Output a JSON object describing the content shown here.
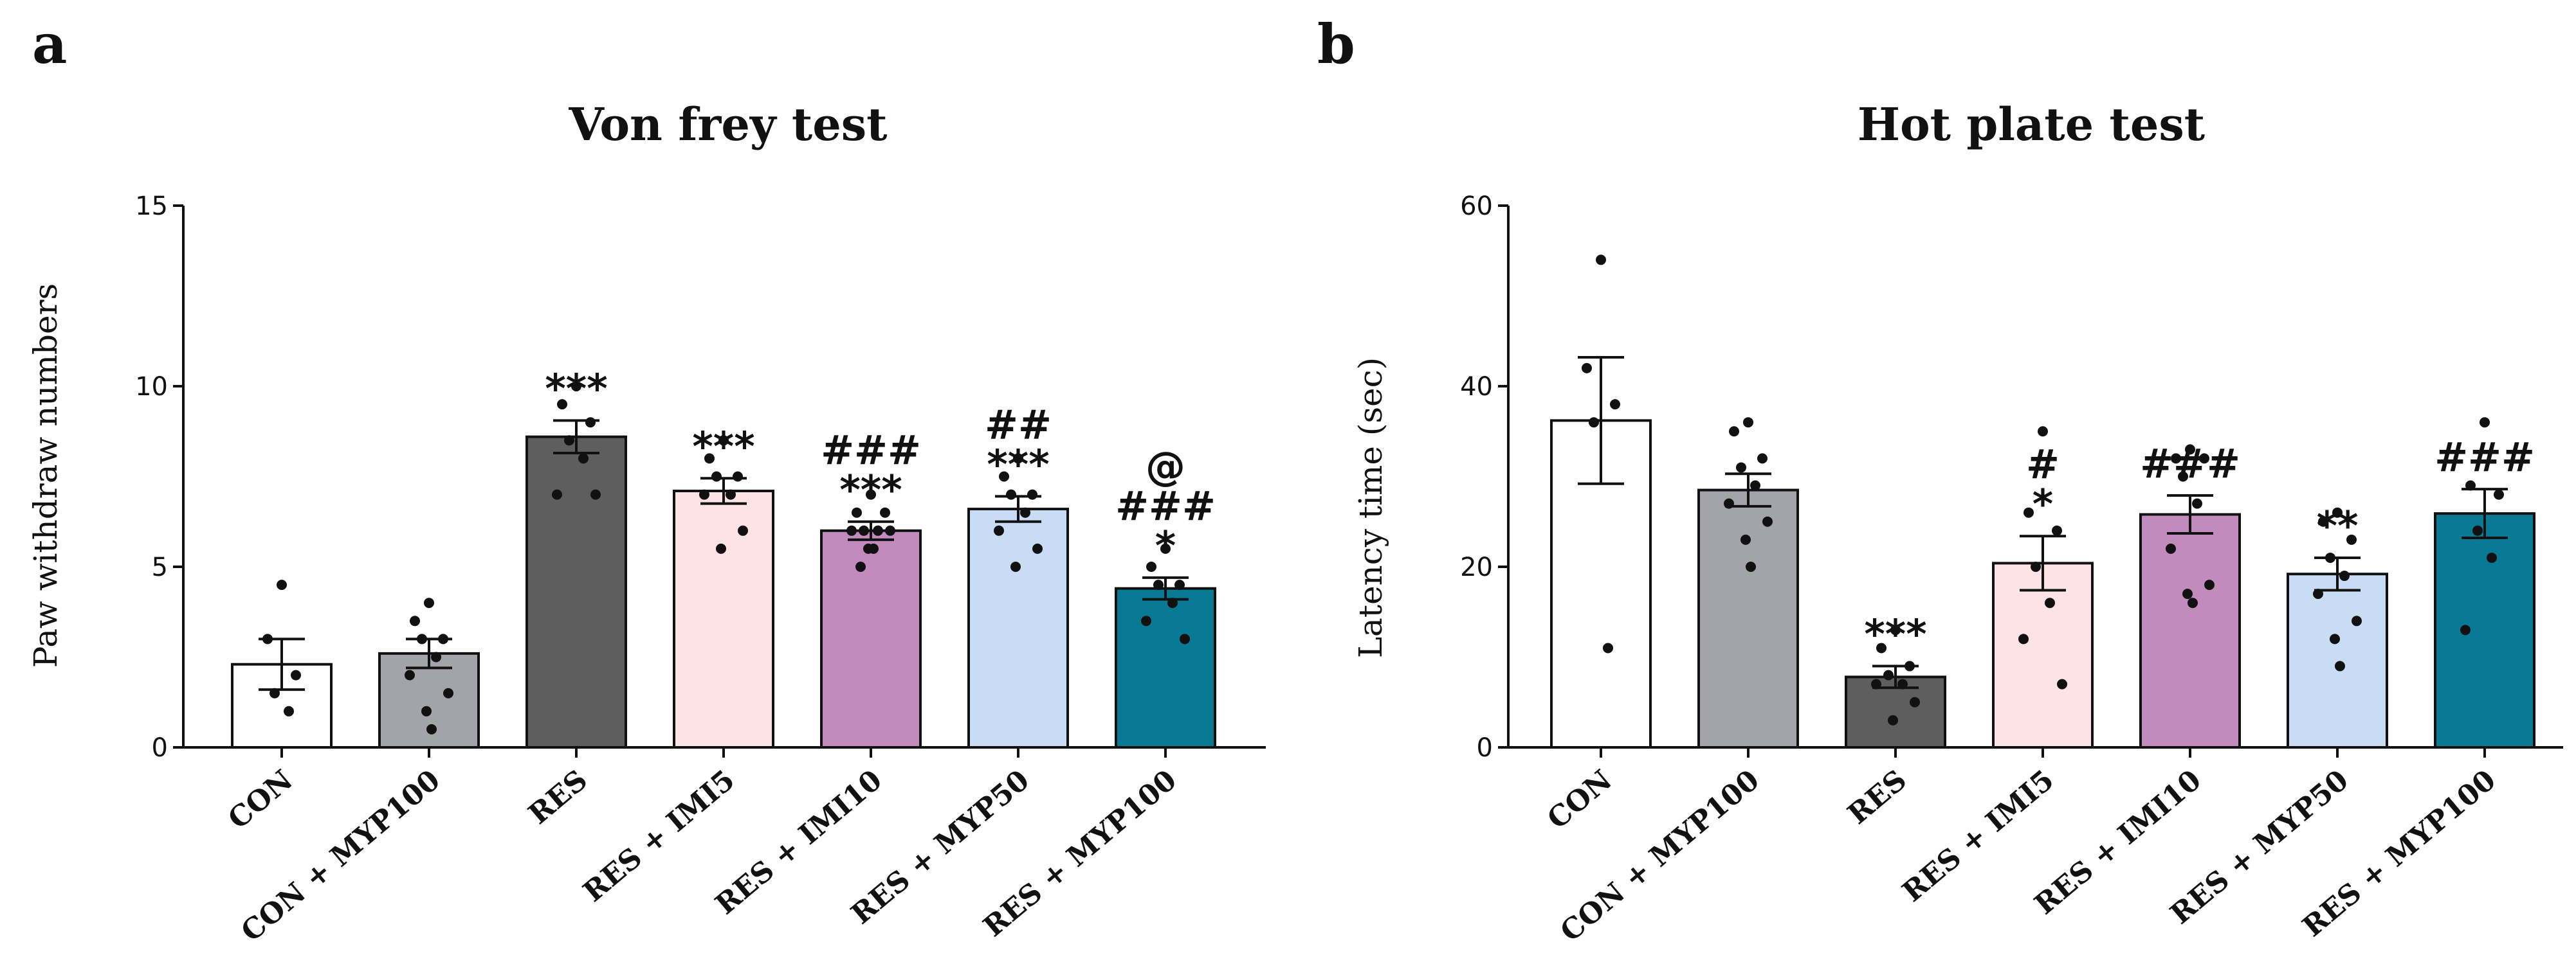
{
  "chart_data": [
    {
      "type": "bar",
      "panel_label": "a",
      "title": "Von frey test",
      "xlabel": "",
      "ylabel": "Paw withdraw numbers",
      "ylim": [
        0,
        15
      ],
      "yticks": [
        0,
        5,
        10,
        15
      ],
      "grid": false,
      "categories": [
        "CON",
        "CON + MYP100",
        "RES",
        "RES + IMI5",
        "RES + IMI10",
        "RES + MYP50",
        "RES + MYP100"
      ],
      "values": [
        2.3,
        2.6,
        8.6,
        7.1,
        6.0,
        6.6,
        4.4
      ],
      "sem": [
        0.7,
        0.4,
        0.45,
        0.35,
        0.25,
        0.35,
        0.3
      ],
      "colors": [
        "#ffffff",
        "#a3a3aa",
        "#5e5e5e",
        "#fde3e6",
        "#c18bbd",
        "#c8ddf5",
        "#087a94"
      ],
      "points": [
        [
          4.5,
          3.0,
          2.0,
          1.5,
          1.0
        ],
        [
          4.0,
          3.5,
          3.0,
          3.0,
          2.5,
          2.0,
          1.5,
          1.0,
          0.5
        ],
        [
          10.0,
          9.5,
          9.0,
          8.5,
          8.0,
          7.0,
          7.0
        ],
        [
          8.5,
          8.0,
          7.5,
          7.5,
          7.0,
          7.0,
          6.0,
          5.5
        ],
        [
          7.0,
          6.5,
          6.5,
          6.0,
          6.0,
          6.0,
          6.0,
          5.5,
          5.5,
          5.0
        ],
        [
          8.0,
          7.5,
          7.0,
          7.0,
          6.5,
          6.0,
          5.5,
          5.0
        ],
        [
          5.5,
          5.0,
          4.5,
          4.5,
          4.0,
          3.5,
          3.0
        ]
      ],
      "significance": [
        [],
        [],
        [
          "***"
        ],
        [
          "***"
        ],
        [
          "###",
          "***"
        ],
        [
          "##",
          "***"
        ],
        [
          "@",
          "###",
          "*"
        ]
      ]
    },
    {
      "type": "bar",
      "panel_label": "b",
      "title": "Hot plate test",
      "xlabel": "",
      "ylabel": "Latency time (sec)",
      "ylim": [
        0,
        60
      ],
      "yticks": [
        0,
        20,
        40,
        60
      ],
      "grid": false,
      "categories": [
        "CON",
        "CON + MYP100",
        "RES",
        "RES + IMI5",
        "RES + IMI10",
        "RES + MYP50",
        "RES + MYP100"
      ],
      "values": [
        36.2,
        28.5,
        7.8,
        20.4,
        25.8,
        19.2,
        25.9
      ],
      "sem": [
        7.0,
        1.8,
        1.2,
        3.0,
        2.1,
        1.8,
        2.7
      ],
      "colors": [
        "#ffffff",
        "#a3a3aa",
        "#5e5e5e",
        "#fde3e6",
        "#c18bbd",
        "#c8ddf5",
        "#087a94"
      ],
      "points": [
        [
          54,
          42,
          38,
          36,
          11
        ],
        [
          36,
          35,
          32,
          31,
          29,
          27,
          25,
          23,
          20
        ],
        [
          13,
          11,
          9,
          8,
          7,
          7,
          5,
          3
        ],
        [
          35,
          26,
          24,
          20,
          16,
          12,
          7
        ],
        [
          33,
          32,
          32,
          30,
          27,
          22,
          18,
          17,
          16
        ],
        [
          26,
          25,
          23,
          21,
          19,
          17,
          14,
          12,
          9
        ],
        [
          36,
          29,
          28,
          24,
          21,
          13
        ]
      ],
      "significance": [
        [],
        [],
        [
          "***"
        ],
        [
          "#",
          "*"
        ],
        [
          "###"
        ],
        [
          "**"
        ],
        [
          "###"
        ]
      ]
    }
  ]
}
